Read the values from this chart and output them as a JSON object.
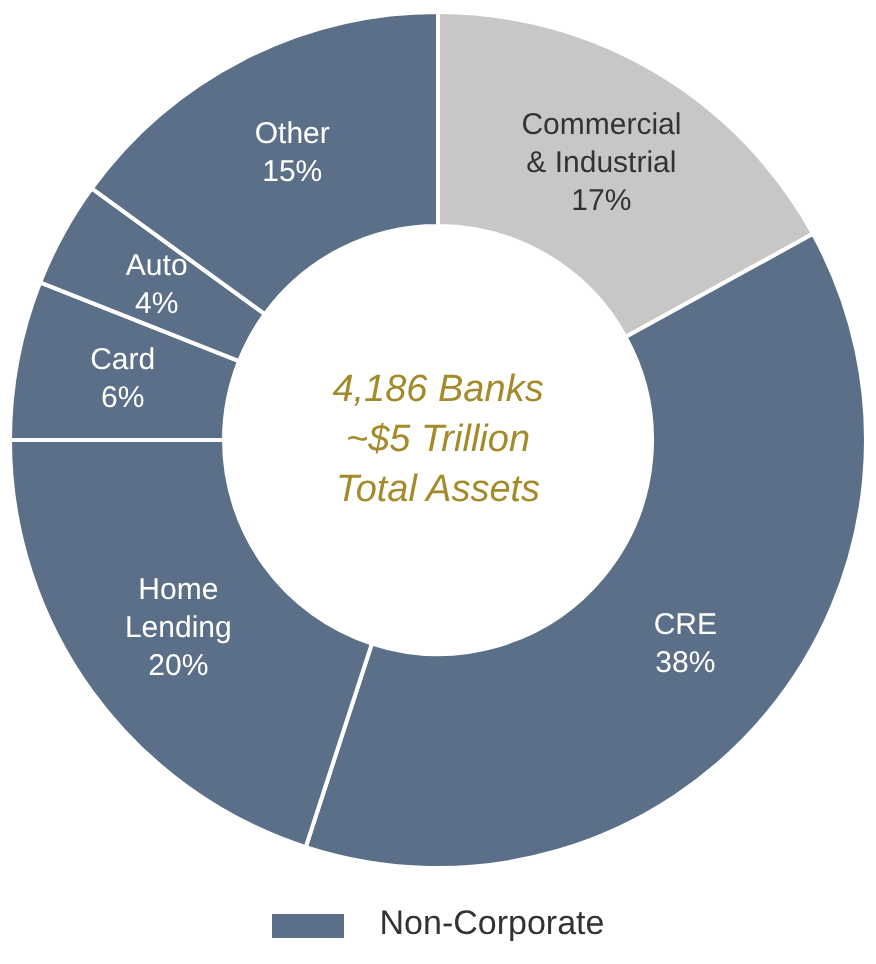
{
  "chart_data": {
    "type": "donut",
    "categories": [
      "Commercial & Industrial",
      "CRE",
      "Home Lending",
      "Card",
      "Auto",
      "Other"
    ],
    "values": [
      17,
      38,
      20,
      6,
      4,
      15
    ],
    "value_labels": [
      "17%",
      "38%",
      "20%",
      "6%",
      "4%",
      "15%"
    ],
    "colors": [
      "#c9c7c6",
      "#5b6f89",
      "#5b6f89",
      "#5b6f89",
      "#5b6f89",
      "#5b6f89"
    ],
    "annotations": [
      "4,186 Banks\n~$5 Trillion\nTotal Assets",
      "Non-Corporate"
    ],
    "legend": false
  }
}
